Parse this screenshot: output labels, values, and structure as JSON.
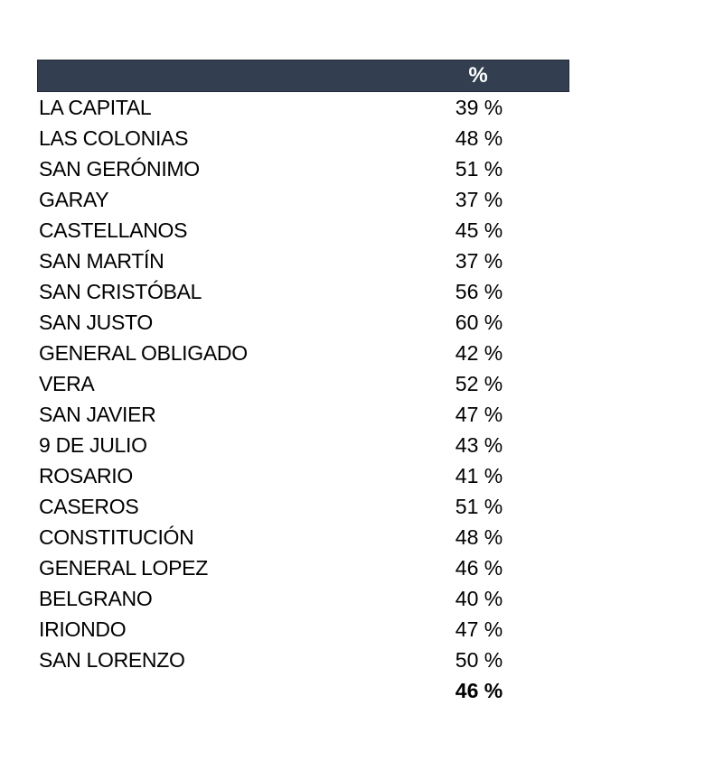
{
  "table": {
    "header": {
      "label_cell": "",
      "value_label": "%"
    },
    "rows": [
      {
        "label": "LA CAPITAL",
        "value": "39 %"
      },
      {
        "label": "LAS COLONIAS",
        "value": "48 %"
      },
      {
        "label": "SAN GERÓNIMO",
        "value": "51 %"
      },
      {
        "label": "GARAY",
        "value": "37 %"
      },
      {
        "label": "CASTELLANOS",
        "value": "45 %"
      },
      {
        "label": "SAN MARTÍN",
        "value": "37 %"
      },
      {
        "label": "SAN CRISTÓBAL",
        "value": "56 %"
      },
      {
        "label": "SAN JUSTO",
        "value": "60 %"
      },
      {
        "label": "GENERAL OBLIGADO",
        "value": "42 %"
      },
      {
        "label": "VERA",
        "value": "52 %"
      },
      {
        "label": "SAN JAVIER",
        "value": "47 %"
      },
      {
        "label": "9 DE JULIO",
        "value": "43 %"
      },
      {
        "label": "ROSARIO",
        "value": "41 %"
      },
      {
        "label": "CASEROS",
        "value": "51 %"
      },
      {
        "label": "CONSTITUCIÓN",
        "value": "48 %"
      },
      {
        "label": "GENERAL LOPEZ",
        "value": "46 %"
      },
      {
        "label": "BELGRANO",
        "value": "40 %"
      },
      {
        "label": "IRIONDO",
        "value": "47 %"
      },
      {
        "label": "SAN LORENZO",
        "value": "50 %"
      }
    ],
    "total": {
      "label": "",
      "value": "46 %"
    }
  },
  "colors": {
    "page_bg": "#FFFFFF",
    "header_bg": "#333F50",
    "header_border": "#222A35",
    "header_text": "#FFFFFF",
    "row_text": "#000000"
  },
  "chart_data": {
    "type": "table",
    "columns": [
      "",
      "%"
    ],
    "categories": [
      "LA CAPITAL",
      "LAS COLONIAS",
      "SAN GERÓNIMO",
      "GARAY",
      "CASTELLANOS",
      "SAN MARTÍN",
      "SAN CRISTÓBAL",
      "SAN JUSTO",
      "GENERAL OBLIGADO",
      "VERA",
      "SAN JAVIER",
      "9 DE JULIO",
      "ROSARIO",
      "CASEROS",
      "CONSTITUCIÓN",
      "GENERAL LOPEZ",
      "BELGRANO",
      "IRIONDO",
      "SAN LORENZO"
    ],
    "values": [
      39,
      48,
      51,
      37,
      45,
      37,
      56,
      60,
      42,
      52,
      47,
      43,
      41,
      51,
      48,
      46,
      40,
      47,
      50
    ],
    "total": 46,
    "unit": "%"
  }
}
